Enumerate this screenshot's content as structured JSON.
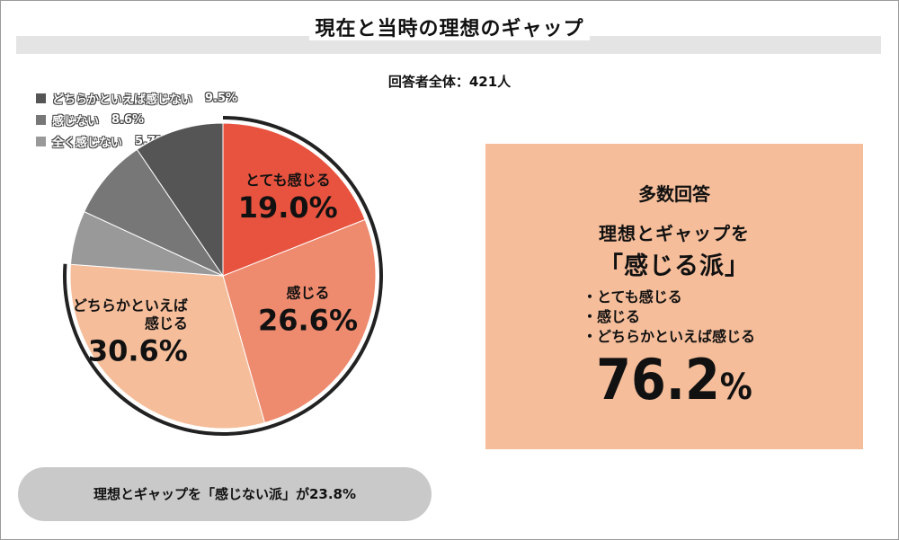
{
  "title": "現在と当時の理想のギャップ",
  "total_label": "回答者全体：421人",
  "legend": [
    {
      "label": "どちらかといえば感じない",
      "pct": "9.5%",
      "color": "#555555"
    },
    {
      "label": "感じない",
      "pct": "8.6%",
      "color": "#777777"
    },
    {
      "label": "全く感じない",
      "pct": "5.7%",
      "color": "#999999"
    }
  ],
  "chart_data": {
    "type": "pie",
    "title": "現在と当時の理想のギャップ",
    "slices": [
      {
        "name": "とても感じる",
        "value": 19.0,
        "label_line1": "とても感じる",
        "label_line2": "",
        "pct": "19.0%",
        "color": "#e8533f"
      },
      {
        "name": "感じる",
        "value": 26.6,
        "label_line1": "感じる",
        "label_line2": "",
        "pct": "26.6%",
        "color": "#ee8a6e"
      },
      {
        "name": "どちらかといえば感じる",
        "value": 30.6,
        "label_line1": "どちらかといえば",
        "label_line2": "感じる",
        "pct": "30.6%",
        "color": "#f5bd9a"
      },
      {
        "name": "全く感じない",
        "value": 5.7,
        "label_line1": "",
        "label_line2": "",
        "pct": "",
        "color": "#999999"
      },
      {
        "name": "感じない",
        "value": 8.6,
        "label_line1": "",
        "label_line2": "",
        "pct": "",
        "color": "#777777"
      },
      {
        "name": "どちらかといえば感じない",
        "value": 9.5,
        "label_line1": "",
        "label_line2": "",
        "pct": "",
        "color": "#555555"
      }
    ]
  },
  "summary": {
    "heading": "多数回答",
    "line1": "理想とギャップを",
    "line2": "「感じる派」",
    "items": [
      "・とても感じる",
      "・感じる",
      "・どちらかといえば感じる"
    ],
    "value": "76.2",
    "unit": "%",
    "bg_color": "#f5bd9a"
  },
  "footer_note": "理想とギャップを「感じない派」が23.8%"
}
